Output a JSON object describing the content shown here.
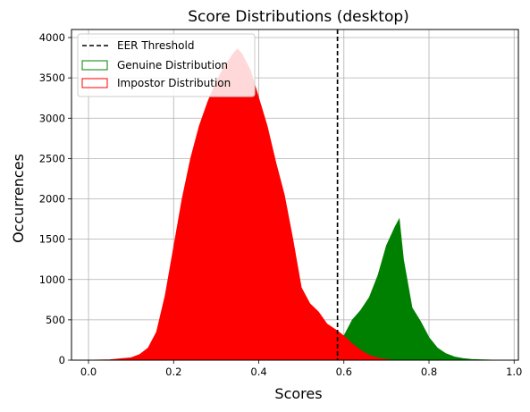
{
  "chart_data": {
    "type": "histogram",
    "title": "Score Distributions (desktop)",
    "xlabel": "Scores",
    "ylabel": "Occurrences",
    "xlim": [
      -0.04,
      1.01
    ],
    "ylim": [
      0,
      4100
    ],
    "xticks": [
      0.0,
      0.2,
      0.4,
      0.6,
      0.8,
      1.0
    ],
    "xtick_labels": [
      "0.0",
      "0.2",
      "0.4",
      "0.6",
      "0.8",
      "1.0"
    ],
    "yticks": [
      0,
      500,
      1000,
      1500,
      2000,
      2500,
      3000,
      3500,
      4000
    ],
    "ytick_labels": [
      "0",
      "500",
      "1000",
      "1500",
      "2000",
      "2500",
      "3000",
      "3500",
      "4000"
    ],
    "grid": true,
    "legend_position": "top-left",
    "threshold": {
      "name": "EER Threshold",
      "x": 0.585,
      "color": "#000000",
      "style": "dashed"
    },
    "series": [
      {
        "name": "Genuine Distribution",
        "color": "#008000",
        "x": [
          0.56,
          0.58,
          0.6,
          0.62,
          0.64,
          0.66,
          0.68,
          0.7,
          0.72,
          0.73,
          0.74,
          0.76,
          0.78,
          0.8,
          0.82,
          0.84,
          0.86,
          0.88,
          0.9,
          0.92,
          0.94,
          0.96
        ],
        "y": [
          0,
          80,
          300,
          500,
          620,
          780,
          1050,
          1420,
          1650,
          1750,
          1250,
          650,
          480,
          280,
          150,
          80,
          40,
          20,
          10,
          5,
          2,
          0
        ]
      },
      {
        "name": "Impostor Distribution",
        "color": "#ff0000",
        "x": [
          0.0,
          0.05,
          0.1,
          0.12,
          0.14,
          0.16,
          0.18,
          0.2,
          0.22,
          0.24,
          0.26,
          0.28,
          0.3,
          0.32,
          0.34,
          0.35,
          0.36,
          0.38,
          0.4,
          0.42,
          0.44,
          0.46,
          0.48,
          0.5,
          0.52,
          0.54,
          0.56,
          0.58,
          0.6,
          0.62,
          0.64,
          0.66,
          0.68,
          0.7,
          0.72
        ],
        "y": [
          0,
          5,
          30,
          70,
          150,
          350,
          800,
          1400,
          2000,
          2500,
          2900,
          3200,
          3450,
          3650,
          3800,
          3860,
          3800,
          3600,
          3250,
          2900,
          2450,
          2050,
          1500,
          900,
          700,
          600,
          450,
          380,
          300,
          200,
          120,
          60,
          25,
          8,
          0
        ]
      }
    ]
  }
}
